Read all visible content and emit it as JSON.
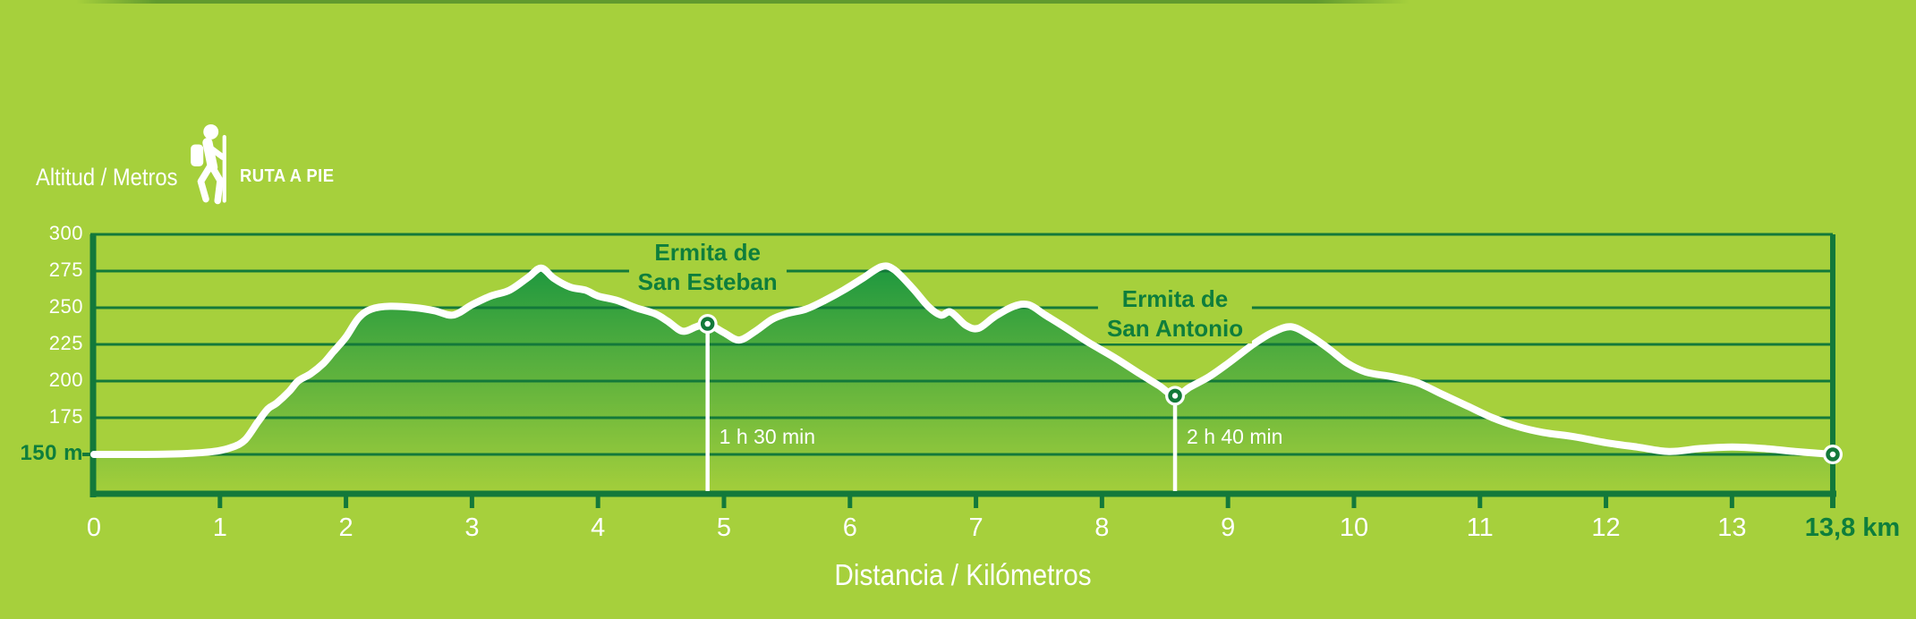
{
  "header": {
    "y_axis_title": "Altitud / Metros",
    "route_type_label": "RUTA A PIE"
  },
  "colors": {
    "background": "#a6d03c",
    "dark_green": "#13793a",
    "text_green": "#0e7e3c",
    "white": "#ffffff",
    "fill_top": "#0b9040",
    "fill_bottom": "#a4cf3b"
  },
  "chart_data": {
    "type": "area",
    "title": "",
    "xlabel": "Distancia / Kilómetros",
    "ylabel": "Altitud / Metros",
    "x_unit": "km",
    "y_unit": "m",
    "xlim": [
      0,
      13.8
    ],
    "ylim": [
      150,
      300
    ],
    "grid": true,
    "y_ticks": [
      {
        "value": 300,
        "label": "300"
      },
      {
        "value": 275,
        "label": "275"
      },
      {
        "value": 250,
        "label": "250"
      },
      {
        "value": 225,
        "label": "225"
      },
      {
        "value": 200,
        "label": "200"
      },
      {
        "value": 175,
        "label": "175"
      },
      {
        "value": 150,
        "label": "150 m",
        "emphasis": true
      }
    ],
    "x_ticks": [
      {
        "value": 0,
        "label": "0"
      },
      {
        "value": 1,
        "label": "1"
      },
      {
        "value": 2,
        "label": "2"
      },
      {
        "value": 3,
        "label": "3"
      },
      {
        "value": 4,
        "label": "4"
      },
      {
        "value": 5,
        "label": "5"
      },
      {
        "value": 6,
        "label": "6"
      },
      {
        "value": 7,
        "label": "7"
      },
      {
        "value": 8,
        "label": "8"
      },
      {
        "value": 9,
        "label": "9"
      },
      {
        "value": 10,
        "label": "10"
      },
      {
        "value": 11,
        "label": "11"
      },
      {
        "value": 12,
        "label": "12"
      },
      {
        "value": 13,
        "label": "13"
      },
      {
        "value": 13.8,
        "label": "13,8 km",
        "emphasis": true
      }
    ],
    "profile": [
      [
        0,
        150
      ],
      [
        0.35,
        150
      ],
      [
        0.7,
        150.5
      ],
      [
        0.95,
        152
      ],
      [
        1.1,
        155
      ],
      [
        1.2,
        160
      ],
      [
        1.3,
        172
      ],
      [
        1.38,
        181
      ],
      [
        1.45,
        185
      ],
      [
        1.55,
        193
      ],
      [
        1.62,
        200
      ],
      [
        1.72,
        205
      ],
      [
        1.82,
        212
      ],
      [
        1.9,
        220
      ],
      [
        2.0,
        230
      ],
      [
        2.1,
        243
      ],
      [
        2.2,
        249
      ],
      [
        2.35,
        251
      ],
      [
        2.55,
        250
      ],
      [
        2.7,
        248
      ],
      [
        2.85,
        245
      ],
      [
        3.0,
        252
      ],
      [
        3.15,
        258
      ],
      [
        3.3,
        262
      ],
      [
        3.45,
        271
      ],
      [
        3.55,
        277
      ],
      [
        3.65,
        270
      ],
      [
        3.78,
        264
      ],
      [
        3.9,
        262
      ],
      [
        4.0,
        258
      ],
      [
        4.15,
        255
      ],
      [
        4.3,
        250
      ],
      [
        4.45,
        246
      ],
      [
        4.55,
        241
      ],
      [
        4.67,
        234
      ],
      [
        4.78,
        237
      ],
      [
        4.87,
        239
      ],
      [
        5.0,
        233
      ],
      [
        5.12,
        228
      ],
      [
        5.25,
        234
      ],
      [
        5.38,
        242
      ],
      [
        5.5,
        246
      ],
      [
        5.65,
        249
      ],
      [
        5.8,
        255
      ],
      [
        5.95,
        262
      ],
      [
        6.1,
        270
      ],
      [
        6.25,
        278
      ],
      [
        6.35,
        276
      ],
      [
        6.5,
        263
      ],
      [
        6.62,
        251
      ],
      [
        6.72,
        245
      ],
      [
        6.8,
        247
      ],
      [
        6.92,
        238
      ],
      [
        7.02,
        236
      ],
      [
        7.15,
        244
      ],
      [
        7.3,
        251
      ],
      [
        7.42,
        252
      ],
      [
        7.55,
        245
      ],
      [
        7.7,
        237
      ],
      [
        7.9,
        226
      ],
      [
        8.1,
        216
      ],
      [
        8.3,
        205
      ],
      [
        8.45,
        197
      ],
      [
        8.58,
        190
      ],
      [
        8.7,
        196
      ],
      [
        8.85,
        203
      ],
      [
        9.0,
        212
      ],
      [
        9.2,
        225
      ],
      [
        9.35,
        233
      ],
      [
        9.5,
        237
      ],
      [
        9.65,
        231
      ],
      [
        9.8,
        222
      ],
      [
        9.95,
        212
      ],
      [
        10.1,
        206
      ],
      [
        10.3,
        203
      ],
      [
        10.5,
        199
      ],
      [
        10.7,
        191
      ],
      [
        10.9,
        183
      ],
      [
        11.1,
        175
      ],
      [
        11.3,
        169
      ],
      [
        11.5,
        165
      ],
      [
        11.75,
        162
      ],
      [
        12.0,
        158
      ],
      [
        12.25,
        155
      ],
      [
        12.5,
        152
      ],
      [
        12.75,
        154
      ],
      [
        13.0,
        155
      ],
      [
        13.25,
        154
      ],
      [
        13.5,
        152
      ],
      [
        13.65,
        151
      ],
      [
        13.8,
        150
      ]
    ],
    "annotations": [
      {
        "name": "Ermita de San Esteban",
        "label_lines": [
          "Ermita de",
          "San Esteban"
        ],
        "km": 4.87,
        "elevation_m": 239,
        "time_label": "1 h 30 min",
        "label_dy": -96
      },
      {
        "name": "Ermita de San Antonio",
        "label_lines": [
          "Ermita de",
          "San Antonio"
        ],
        "km": 8.58,
        "elevation_m": 190,
        "time_label": "2 h 40 min",
        "label_dy": -124
      }
    ],
    "end_marker": {
      "km": 13.8,
      "elevation_m": 150,
      "label": "13,8 km"
    }
  }
}
